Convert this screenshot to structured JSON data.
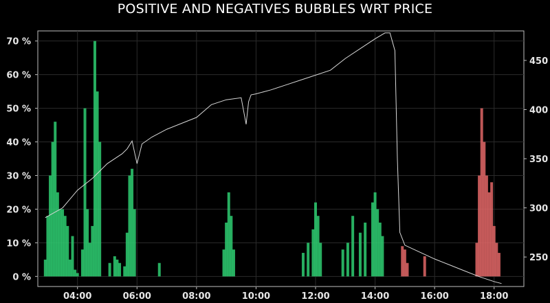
{
  "title": "POSITIVE AND NEGATIVES BUBBLES WRT PRICE",
  "chart_data": {
    "type": "bar",
    "title": "POSITIVE AND NEGATIVES BUBBLES WRT PRICE",
    "xlabel": "",
    "ylabel": "",
    "grid": true,
    "x_ticks": [
      "04:00",
      "06:00",
      "08:00",
      "10:00",
      "12:00",
      "14:00",
      "16:00",
      "18:00"
    ],
    "y_left_ticks": [
      "0 %",
      "10 %",
      "20 %",
      "30 %",
      "40 %",
      "50 %",
      "60 %",
      "70 %"
    ],
    "y_right_ticks": [
      "250",
      "300",
      "350",
      "400",
      "450"
    ],
    "xlim": [
      "02:40",
      "19:00"
    ],
    "ylim_left": [
      -3,
      73
    ],
    "ylim_right": [
      220,
      480
    ],
    "colors": {
      "positive": "#2ecc71",
      "negative": "#e06666",
      "price": "#d9d9d9"
    },
    "series": [
      {
        "role": "positive",
        "axis": "left",
        "type": "bar",
        "x": [
          "02:55",
          "03:00",
          "03:05",
          "03:10",
          "03:15",
          "03:20",
          "03:25",
          "03:30",
          "03:35",
          "03:40",
          "03:45",
          "03:50",
          "03:55",
          "04:00",
          "04:10",
          "04:15",
          "04:20",
          "04:25",
          "04:30",
          "04:35",
          "04:40",
          "04:45",
          "05:05",
          "05:15",
          "05:20",
          "05:25",
          "05:35",
          "05:40",
          "05:45",
          "05:50",
          "05:55",
          "06:45",
          "08:55",
          "09:00",
          "09:05",
          "09:10",
          "09:15",
          "11:35",
          "11:45",
          "11:55",
          "12:00",
          "12:05",
          "12:10",
          "12:55",
          "13:05",
          "13:15",
          "13:30",
          "13:40",
          "13:55",
          "14:00",
          "14:05",
          "14:10",
          "14:15"
        ],
        "values": [
          5,
          18,
          30,
          40,
          46,
          25,
          20,
          20,
          18,
          15,
          5,
          12,
          2,
          1,
          8,
          50,
          20,
          10,
          15,
          70,
          55,
          40,
          4,
          6,
          5,
          4,
          3,
          13,
          30,
          32,
          20,
          4,
          8,
          16,
          25,
          18,
          8,
          7,
          10,
          14,
          22,
          18,
          10,
          8,
          10,
          18,
          13,
          16,
          22,
          25,
          20,
          16,
          12
        ]
      },
      {
        "role": "negative",
        "axis": "left",
        "type": "bar",
        "x": [
          "14:55",
          "15:00",
          "15:05",
          "15:40",
          "17:25",
          "17:30",
          "17:35",
          "17:40",
          "17:45",
          "17:50",
          "17:55",
          "18:00",
          "18:05",
          "18:10"
        ],
        "values": [
          9,
          8,
          4,
          6,
          10,
          30,
          50,
          40,
          30,
          25,
          28,
          15,
          10,
          7
        ]
      },
      {
        "role": "price",
        "axis": "right",
        "type": "line",
        "x": [
          "02:55",
          "03:30",
          "04:00",
          "04:30",
          "05:00",
          "05:30",
          "05:40",
          "05:50",
          "06:00",
          "06:10",
          "06:30",
          "07:00",
          "07:30",
          "08:00",
          "08:30",
          "09:00",
          "09:30",
          "09:40",
          "09:45",
          "09:50",
          "10:00",
          "10:30",
          "11:00",
          "11:30",
          "12:00",
          "12:30",
          "13:00",
          "13:30",
          "14:00",
          "14:20",
          "14:30",
          "14:40",
          "14:45",
          "14:50",
          "15:00",
          "15:30",
          "16:00",
          "16:30",
          "17:00",
          "17:30",
          "18:00",
          "18:15"
        ],
        "values": [
          290,
          300,
          318,
          330,
          345,
          355,
          360,
          368,
          345,
          365,
          372,
          380,
          386,
          392,
          405,
          410,
          412,
          385,
          408,
          415,
          416,
          420,
          425,
          430,
          435,
          440,
          452,
          462,
          472,
          478,
          478,
          460,
          350,
          275,
          262,
          255,
          248,
          242,
          236,
          230,
          225,
          223
        ]
      }
    ]
  }
}
